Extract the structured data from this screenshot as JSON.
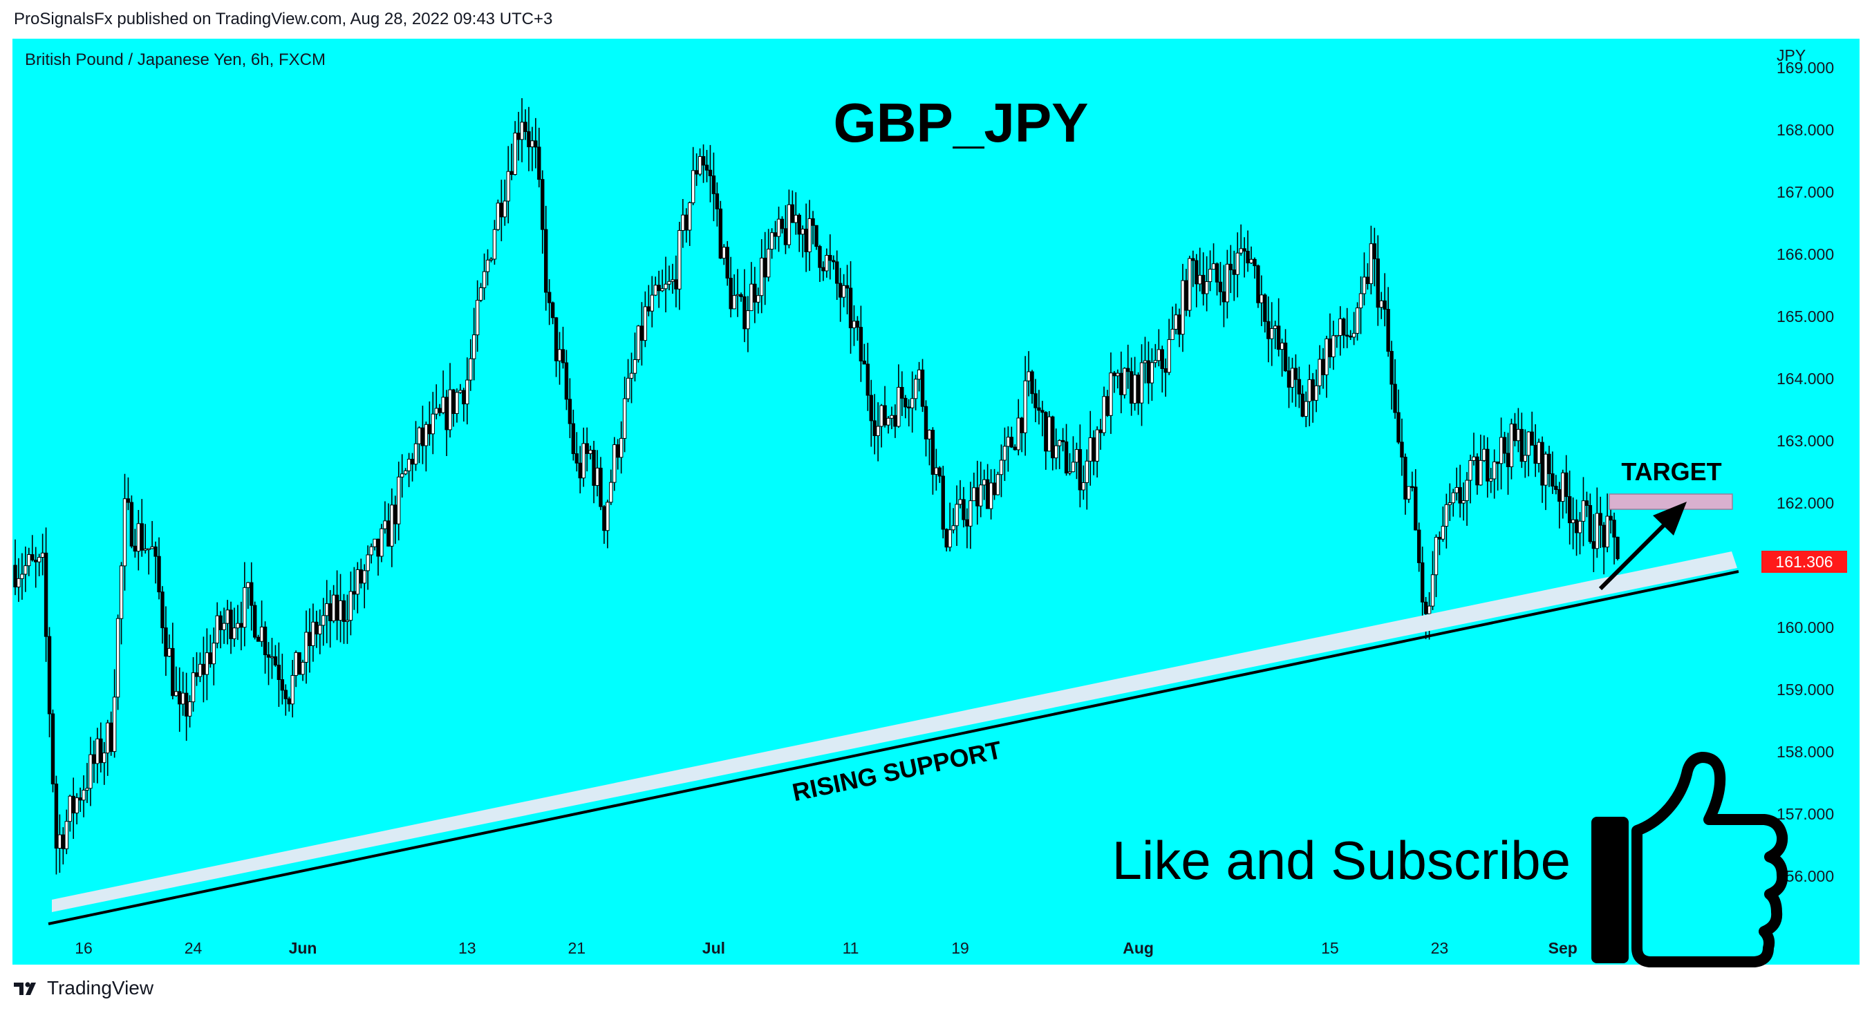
{
  "header": {
    "published": "ProSignalsFx published on TradingView.com, Aug 28, 2022 09:43 UTC+3"
  },
  "footer": {
    "brand": "TradingView"
  },
  "colors": {
    "background": "#00ffff",
    "candle": "#000000",
    "support_band": "#dcebf5",
    "target_zone": "#d9b0cf",
    "price_tag": "#ff1a1a"
  },
  "chart_data": {
    "type": "candlestick",
    "symbol_line": "British Pound / Japanese Yen, 6h, FXCM",
    "title": "GBP_JPY",
    "currency": "JPY",
    "ylim": [
      155.0,
      169.7
    ],
    "y_ticks": [
      "169.000",
      "168.000",
      "167.000",
      "166.000",
      "165.000",
      "164.000",
      "163.000",
      "162.000",
      "161.000",
      "160.000",
      "159.000",
      "158.000",
      "157.000",
      "156.000"
    ],
    "x_ticks": [
      "16",
      "24",
      "Jun",
      "13",
      "21",
      "Jul",
      "11",
      "19",
      "Aug",
      "15",
      "23",
      "Sep"
    ],
    "x_range": [
      "2022-05-11",
      "2022-09-05"
    ],
    "x_tick_dates": [
      "2022-05-16",
      "2022-05-24",
      "2022-06-01",
      "2022-06-13",
      "2022-06-21",
      "2022-07-01",
      "2022-07-11",
      "2022-07-19",
      "2022-08-01",
      "2022-08-15",
      "2022-08-23",
      "2022-09-01"
    ],
    "last_price": "161.306",
    "close_path": [
      [
        "2022-05-11",
        161.0
      ],
      [
        "2022-05-13",
        160.9
      ],
      [
        "2022-05-14",
        156.5
      ],
      [
        "2022-05-16",
        157.5
      ],
      [
        "2022-05-18",
        158.3
      ],
      [
        "2022-05-19",
        161.8
      ],
      [
        "2022-05-21",
        161.2
      ],
      [
        "2022-05-23",
        158.5
      ],
      [
        "2022-05-26",
        160.0
      ],
      [
        "2022-05-28",
        160.4
      ],
      [
        "2022-05-31",
        159.0
      ],
      [
        "2022-06-02",
        160.0
      ],
      [
        "2022-06-04",
        160.3
      ],
      [
        "2022-06-07",
        161.4
      ],
      [
        "2022-06-09",
        162.8
      ],
      [
        "2022-06-11",
        163.3
      ],
      [
        "2022-06-13",
        164.0
      ],
      [
        "2022-06-15",
        166.5
      ],
      [
        "2022-06-17",
        168.3
      ],
      [
        "2022-06-18",
        167.5
      ],
      [
        "2022-06-19",
        165.0
      ],
      [
        "2022-06-20",
        164.0
      ],
      [
        "2022-06-21",
        162.5
      ],
      [
        "2022-06-22",
        162.8
      ],
      [
        "2022-06-23",
        161.8
      ],
      [
        "2022-06-24",
        163.0
      ],
      [
        "2022-06-26",
        165.0
      ],
      [
        "2022-06-28",
        165.5
      ],
      [
        "2022-06-30",
        167.7
      ],
      [
        "2022-07-01",
        167.0
      ],
      [
        "2022-07-02",
        165.5
      ],
      [
        "2022-07-03",
        165.0
      ],
      [
        "2022-07-05",
        166.0
      ],
      [
        "2022-07-07",
        166.6
      ],
      [
        "2022-07-09",
        166.0
      ],
      [
        "2022-07-11",
        165.0
      ],
      [
        "2022-07-13",
        163.2
      ],
      [
        "2022-07-15",
        163.8
      ],
      [
        "2022-07-16",
        164.0
      ],
      [
        "2022-07-18",
        161.5
      ],
      [
        "2022-07-20",
        162.0
      ],
      [
        "2022-07-22",
        162.5
      ],
      [
        "2022-07-24",
        163.8
      ],
      [
        "2022-07-26",
        162.8
      ],
      [
        "2022-07-28",
        162.5
      ],
      [
        "2022-07-30",
        163.8
      ],
      [
        "2022-08-01",
        163.9
      ],
      [
        "2022-08-03",
        164.3
      ],
      [
        "2022-08-05",
        165.8
      ],
      [
        "2022-08-07",
        165.5
      ],
      [
        "2022-08-09",
        166.1
      ],
      [
        "2022-08-10",
        165.3
      ],
      [
        "2022-08-11",
        164.6
      ],
      [
        "2022-08-13",
        163.5
      ],
      [
        "2022-08-15",
        164.6
      ],
      [
        "2022-08-17",
        164.8
      ],
      [
        "2022-08-18",
        166.0
      ],
      [
        "2022-08-19",
        164.9
      ],
      [
        "2022-08-20",
        162.8
      ],
      [
        "2022-08-21",
        162.0
      ],
      [
        "2022-08-22",
        160.0
      ],
      [
        "2022-08-23",
        161.5
      ],
      [
        "2022-08-25",
        162.3
      ],
      [
        "2022-08-27",
        162.8
      ],
      [
        "2022-08-29",
        163.0
      ],
      [
        "2022-08-31",
        162.5
      ],
      [
        "2022-09-02",
        161.8
      ],
      [
        "2022-09-04",
        161.5
      ],
      [
        "2022-09-05",
        161.3
      ]
    ],
    "annotations": {
      "target_label": "TARGET",
      "support_label": "RISING SUPPORT",
      "cta": "Like and Subscribe"
    }
  }
}
